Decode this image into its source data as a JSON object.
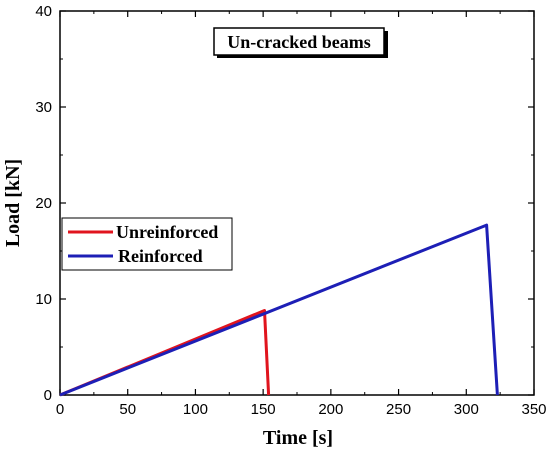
{
  "chart_data": {
    "type": "line",
    "title": "Un-cracked beams",
    "xlabel": "Time [s]",
    "ylabel": "Load [kN]",
    "xlim": [
      0,
      350
    ],
    "ylim": [
      0,
      40
    ],
    "xticks": [
      0,
      50,
      100,
      150,
      200,
      250,
      300,
      350
    ],
    "yticks": [
      0,
      10,
      20,
      30,
      40
    ],
    "grid": false,
    "legend_position": "middle-left",
    "series": [
      {
        "name": "Unreinforced",
        "color": "#e0141e",
        "x": [
          0,
          151,
          154
        ],
        "y": [
          0,
          8.8,
          0
        ]
      },
      {
        "name": "Reinforced",
        "color": "#1d1fb6",
        "x": [
          0,
          315,
          323
        ],
        "y": [
          0,
          17.7,
          0
        ]
      }
    ]
  }
}
